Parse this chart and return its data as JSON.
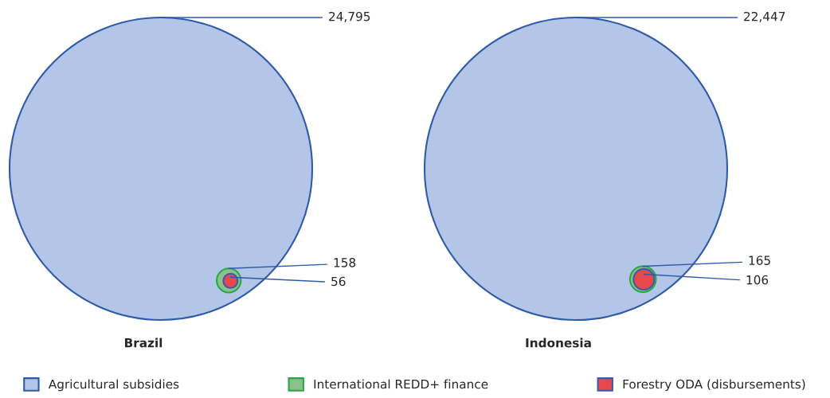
{
  "chart_data": {
    "type": "other",
    "categories": [
      "Brazil",
      "Indonesia"
    ],
    "legend": "bottom",
    "series": [
      {
        "name": "Agricultural subsidies",
        "color": "#b3c6e7",
        "values": [
          24795,
          22447
        ],
        "value_labels": [
          "24,795",
          "22,447"
        ]
      },
      {
        "name": "International REDD+ finance",
        "color": "#8dc18b",
        "values": [
          158,
          165
        ],
        "value_labels": [
          "158",
          "165"
        ]
      },
      {
        "name": "Forestry ODA (disbursements)",
        "color": "#e8474c",
        "values": [
          56,
          106
        ],
        "value_labels": [
          "56",
          "106"
        ]
      }
    ]
  }
}
